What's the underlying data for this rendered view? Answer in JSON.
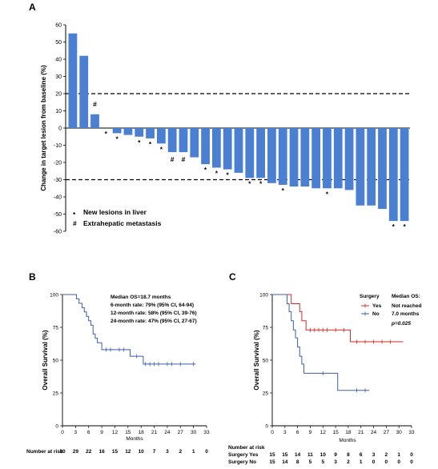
{
  "chart_data": [
    {
      "type": "bar",
      "panel": "A",
      "ylabel": "Change in target lesion from baseline (%)",
      "ylim": [
        -60,
        60
      ],
      "yticks": [
        60,
        50,
        40,
        30,
        20,
        10,
        0,
        -10,
        -20,
        -30,
        -40,
        -50,
        -60
      ],
      "reference_lines": [
        20,
        -30
      ],
      "values": [
        55,
        42,
        8,
        0,
        -3,
        -4,
        -5,
        -6,
        -9,
        -14,
        -14,
        -17,
        -21,
        -23,
        -24,
        -26,
        -29,
        -29,
        -32,
        -33,
        -34,
        -34,
        -35,
        -35,
        -35,
        -36,
        -45,
        -45,
        -47,
        -54,
        -54
      ],
      "markers": [
        "",
        "",
        "#",
        "*",
        "*",
        "",
        "*",
        "*",
        "*",
        "#",
        "#",
        "",
        "*",
        "*",
        "*",
        "",
        "*",
        "*",
        "",
        "*",
        "",
        "",
        "",
        "*",
        "",
        "",
        "",
        "",
        "",
        "*",
        "*"
      ],
      "legend": [
        {
          "symbol": "*",
          "label": "New lesions in liver"
        },
        {
          "symbol": "#",
          "label": "Extrahepatic metastasis"
        }
      ]
    },
    {
      "type": "line",
      "panel": "B",
      "ylabel": "Overall Survival (%)",
      "xlabel": "Months",
      "xlim": [
        0,
        33
      ],
      "ylim": [
        0,
        100
      ],
      "xticks": [
        0,
        3,
        6,
        9,
        12,
        15,
        18,
        21,
        24,
        27,
        30,
        33
      ],
      "yticks": [
        0,
        25,
        50,
        75,
        100
      ],
      "series": [
        {
          "steps": [
            [
              0,
              100
            ],
            [
              2.5,
              100
            ],
            [
              3.2,
              96.7
            ],
            [
              3.8,
              93.3
            ],
            [
              4.5,
              90
            ],
            [
              5,
              86.7
            ],
            [
              5.5,
              83.3
            ],
            [
              6,
              80
            ],
            [
              6.5,
              76.7
            ],
            [
              7,
              70
            ],
            [
              7.5,
              66.7
            ],
            [
              8,
              63.3
            ],
            [
              9,
              58
            ],
            [
              15,
              58
            ],
            [
              15.5,
              53
            ],
            [
              17.5,
              53
            ],
            [
              18.5,
              47
            ],
            [
              30.5,
              47
            ]
          ],
          "censors": [
            [
              10,
              58
            ],
            [
              11,
              58
            ],
            [
              13,
              58
            ],
            [
              14,
              58
            ],
            [
              17,
              53
            ],
            [
              19,
              47
            ],
            [
              20,
              47
            ],
            [
              21,
              47
            ],
            [
              22,
              47
            ],
            [
              24,
              47
            ],
            [
              25,
              47
            ],
            [
              27,
              47
            ],
            [
              30,
              47
            ]
          ]
        }
      ],
      "annotation": [
        "Median OS=18.7 months",
        "6-month rate:   79% (95% CI, 64-94)",
        "12-month rate: 58% (95% CI, 39-76)",
        "24-month rate: 47% (95% CI, 27-67)"
      ],
      "risk_title": "Number at risk",
      "risk_values": [
        30,
        29,
        22,
        16,
        15,
        12,
        10,
        7,
        3,
        2,
        1,
        0
      ]
    },
    {
      "type": "line",
      "panel": "C",
      "ylabel": "Overall Survival (%)",
      "xlabel": "Months",
      "xlim": [
        0,
        33
      ],
      "ylim": [
        0,
        100
      ],
      "xticks": [
        0,
        3,
        6,
        9,
        12,
        15,
        18,
        21,
        24,
        27,
        30,
        33
      ],
      "yticks": [
        0,
        25,
        50,
        75,
        100
      ],
      "legend_header": [
        "Surgery",
        "Median OS:"
      ],
      "series": [
        {
          "name": "Yes",
          "median": "Not reached",
          "color": "#d62728",
          "steps": [
            [
              0,
              100
            ],
            [
              4,
              100
            ],
            [
              4.5,
              93
            ],
            [
              6,
              93
            ],
            [
              6.5,
              87
            ],
            [
              7,
              80
            ],
            [
              8,
              73
            ],
            [
              18,
              73
            ],
            [
              18.5,
              64
            ],
            [
              31,
              64
            ]
          ],
          "censors": [
            [
              9,
              73
            ],
            [
              10,
              73
            ],
            [
              11,
              73
            ],
            [
              12,
              73
            ],
            [
              13,
              73
            ],
            [
              15,
              73
            ],
            [
              17,
              73
            ],
            [
              20,
              64
            ],
            [
              22,
              64
            ],
            [
              24,
              64
            ],
            [
              26,
              64
            ],
            [
              28,
              64
            ]
          ]
        },
        {
          "name": "No",
          "median": "7.0 months",
          "color": "#3b5fa8",
          "steps": [
            [
              0,
              100
            ],
            [
              3,
              100
            ],
            [
              3.5,
              93
            ],
            [
              4,
              87
            ],
            [
              4.5,
              80
            ],
            [
              5,
              73
            ],
            [
              5.5,
              67
            ],
            [
              6,
              60
            ],
            [
              6.5,
              53
            ],
            [
              7,
              47
            ],
            [
              7.5,
              40
            ],
            [
              15,
              40
            ],
            [
              15.5,
              27
            ],
            [
              23,
              27
            ]
          ],
          "censors": [
            [
              12,
              40
            ],
            [
              20,
              27
            ],
            [
              22,
              27
            ]
          ]
        }
      ],
      "pvalue": "p=0.025",
      "risk_title": "Number at risk",
      "risk_rows": [
        {
          "label": "Surgery Yes",
          "values": [
            15,
            15,
            14,
            11,
            10,
            9,
            8,
            6,
            3,
            2,
            1,
            0
          ]
        },
        {
          "label": "Surgery No",
          "values": [
            15,
            14,
            8,
            5,
            5,
            3,
            2,
            1,
            0,
            0,
            0,
            0
          ]
        }
      ]
    }
  ]
}
